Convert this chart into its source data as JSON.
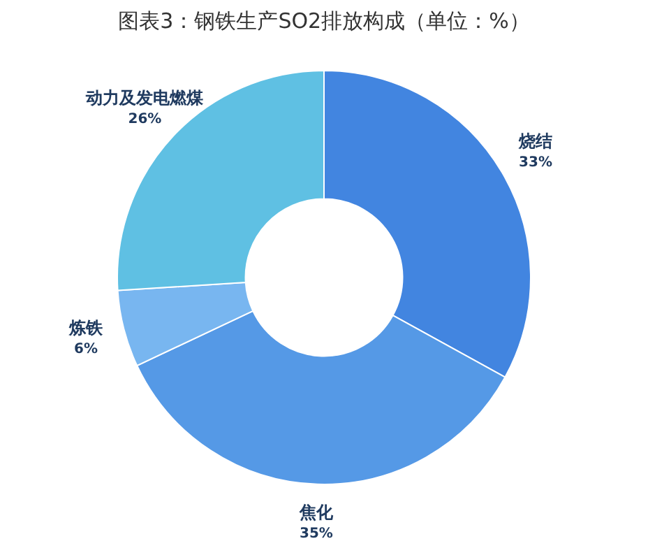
{
  "chart_data": {
    "type": "donut",
    "title": "图表3：钢铁生产SO2排放构成（单位：%）",
    "categories": [
      "烧结",
      "焦化",
      "炼铁",
      "动力及发电燃煤"
    ],
    "values": [
      33,
      35,
      6,
      26
    ],
    "value_labels": [
      "33%",
      "35%",
      "6%",
      "26%"
    ],
    "colors": [
      "#4285e0",
      "#5599e6",
      "#78b6f0",
      "#5fc0e3"
    ],
    "legend": false
  }
}
